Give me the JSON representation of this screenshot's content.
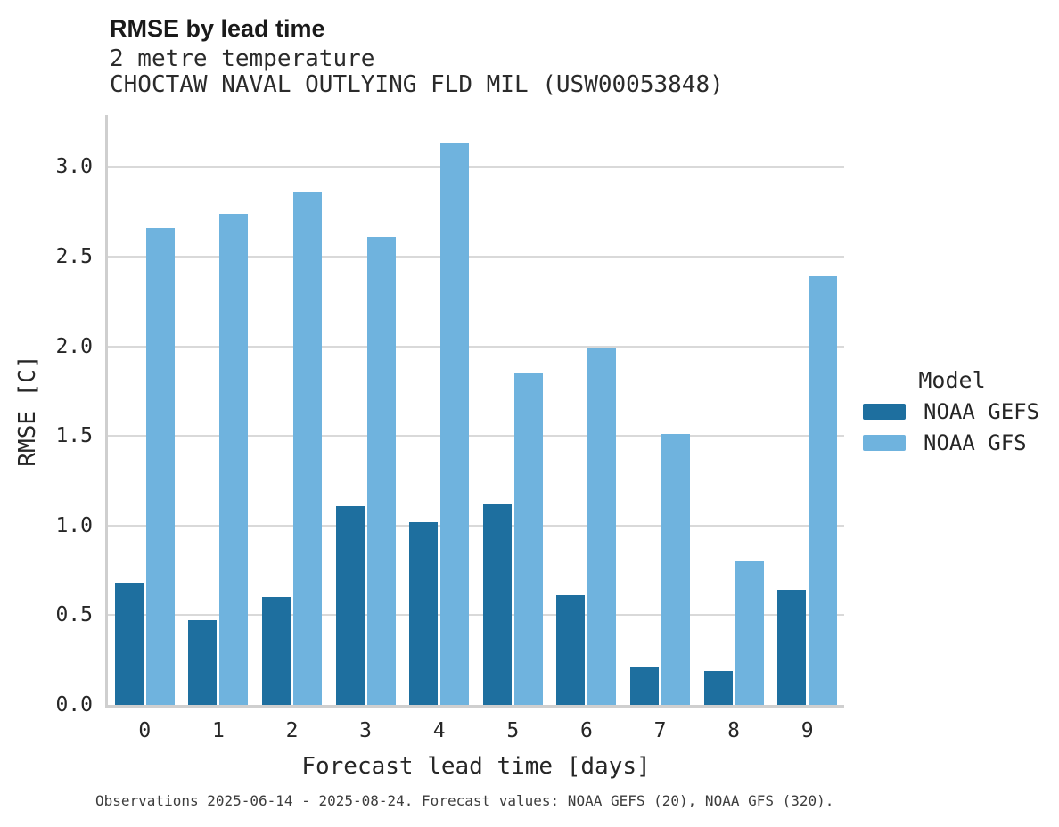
{
  "legend": {
    "title": "Model"
  },
  "caption": "Observations 2025-06-14 - 2025-08-24. Forecast values: NOAA GEFS (20), NOAA GFS (320).",
  "chart_data": {
    "type": "bar",
    "title": "RMSE by lead time",
    "subtitle": "2 metre temperature",
    "station": "CHOCTAW NAVAL OUTLYING FLD MIL (USW00053848)",
    "xlabel": "Forecast lead time [days]",
    "ylabel": "RMSE [C]",
    "categories": [
      "0",
      "1",
      "2",
      "3",
      "4",
      "5",
      "6",
      "7",
      "8",
      "9"
    ],
    "series": [
      {
        "name": "NOAA GEFS",
        "color": "#1e6f9f",
        "values": [
          0.68,
          0.47,
          0.6,
          1.11,
          1.02,
          1.12,
          0.61,
          0.21,
          0.19,
          0.64
        ]
      },
      {
        "name": "NOAA GFS",
        "color": "#6fb3de",
        "values": [
          2.66,
          2.74,
          2.86,
          2.61,
          3.13,
          1.85,
          1.99,
          1.51,
          0.8,
          2.39
        ]
      }
    ],
    "yticks": [
      0.0,
      0.5,
      1.0,
      1.5,
      2.0,
      2.5,
      3.0
    ],
    "ylim": [
      0,
      3.29
    ],
    "grid": "horizontal",
    "legend_position": "right",
    "colors": {
      "grid": "#d9d9d9",
      "spine": "#cfcfcf"
    }
  }
}
